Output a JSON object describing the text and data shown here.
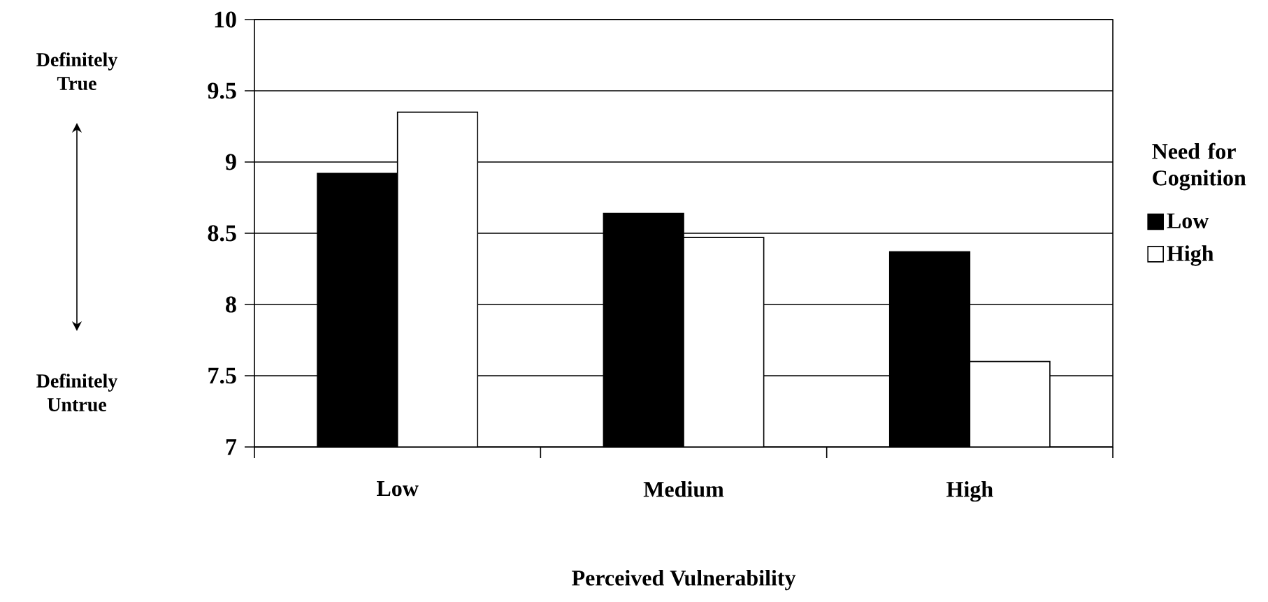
{
  "chart_data": {
    "type": "bar",
    "xlabel": "Perceived Vulnerability",
    "legend_title": "Need for Cognition",
    "categories": [
      "Low",
      "Medium",
      "High"
    ],
    "series": [
      {
        "name": "Low",
        "color": "#000000",
        "values": [
          8.92,
          8.64,
          8.37
        ]
      },
      {
        "name": "High",
        "color": "#ffffff",
        "values": [
          9.35,
          8.47,
          7.6
        ]
      }
    ],
    "ylim": [
      7,
      10
    ],
    "yticks": [
      7,
      7.5,
      8,
      8.5,
      9,
      9.5,
      10
    ],
    "grid": "y",
    "legend": "right",
    "annotations": [
      "Definitely True",
      "Definitely Untrue"
    ]
  }
}
